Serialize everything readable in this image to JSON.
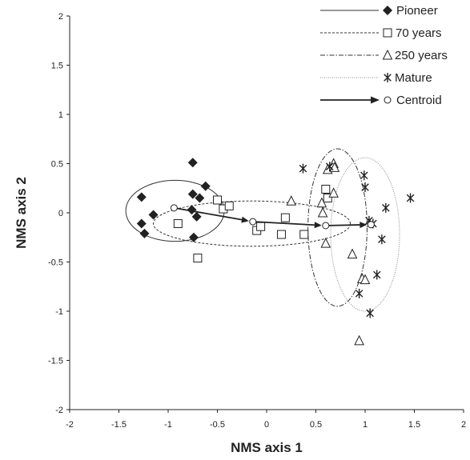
{
  "chart_data": {
    "type": "scatter",
    "title": "",
    "xlabel": "NMS axis 1",
    "ylabel": "NMS axis 2",
    "xlim": [
      -2,
      2
    ],
    "ylim": [
      -2,
      2
    ],
    "xticks": [
      "-2",
      "-1.5",
      "-1",
      "-0.5",
      "0",
      "0.5",
      "1",
      "1.5",
      "2"
    ],
    "yticks": [
      "2",
      "1.5",
      "1",
      "0.5",
      "0",
      "-0.5",
      "-1",
      "-1.5",
      "-2"
    ],
    "grid": false,
    "legend_position": "top-right",
    "series": [
      {
        "name": "Pioneer",
        "marker": "filled-diamond",
        "line_style": "solid",
        "color": "#222222",
        "points": [
          [
            -0.75,
            0.51
          ],
          [
            -0.62,
            0.27
          ],
          [
            -0.75,
            0.19
          ],
          [
            -0.68,
            0.15
          ],
          [
            -1.27,
            0.16
          ],
          [
            -0.76,
            0.03
          ],
          [
            -0.71,
            -0.04
          ],
          [
            -1.27,
            -0.11
          ],
          [
            -1.24,
            -0.21
          ],
          [
            -1.15,
            -0.02
          ],
          [
            -0.74,
            -0.25
          ]
        ],
        "ellipse": {
          "cx": -0.93,
          "cy": 0.02,
          "rx": 0.5,
          "ry": 0.31
        }
      },
      {
        "name": "70 years",
        "marker": "open-square",
        "line_style": "dashed",
        "color": "#222222",
        "points": [
          [
            -0.9,
            -0.11
          ],
          [
            -0.7,
            -0.46
          ],
          [
            -0.5,
            0.13
          ],
          [
            -0.44,
            0.04
          ],
          [
            -0.38,
            0.07
          ],
          [
            -0.1,
            -0.18
          ],
          [
            -0.06,
            -0.14
          ],
          [
            0.19,
            -0.05
          ],
          [
            0.15,
            -0.22
          ],
          [
            0.38,
            -0.22
          ],
          [
            0.6,
            0.24
          ],
          [
            0.62,
            0.15
          ]
        ],
        "ellipse": {
          "cx": -0.15,
          "cy": -0.11,
          "rx": 1.0,
          "ry": 0.23
        }
      },
      {
        "name": "250 years",
        "marker": "open-triangle",
        "line_style": "dash-dot",
        "color": "#222222",
        "points": [
          [
            0.25,
            0.12
          ],
          [
            0.56,
            0.1
          ],
          [
            0.57,
            0.0
          ],
          [
            0.62,
            0.44
          ],
          [
            0.68,
            0.5
          ],
          [
            0.68,
            0.2
          ],
          [
            0.69,
            0.46
          ],
          [
            0.6,
            -0.31
          ],
          [
            0.87,
            -0.42
          ],
          [
            0.97,
            -0.67
          ],
          [
            1.0,
            -0.68
          ],
          [
            0.94,
            -1.3
          ]
        ],
        "ellipse": {
          "cx": 0.72,
          "cy": -0.15,
          "rx": 0.3,
          "ry": 0.8
        }
      },
      {
        "name": "Mature",
        "marker": "asterisk",
        "line_style": "dotted",
        "color": "#222222",
        "points": [
          [
            0.37,
            0.45
          ],
          [
            0.64,
            0.47
          ],
          [
            0.99,
            0.38
          ],
          [
            1.0,
            0.26
          ],
          [
            1.21,
            0.05
          ],
          [
            1.46,
            0.15
          ],
          [
            1.04,
            -0.08
          ],
          [
            1.08,
            -0.11
          ],
          [
            1.17,
            -0.27
          ],
          [
            1.12,
            -0.63
          ],
          [
            0.94,
            -0.82
          ],
          [
            1.05,
            -1.02
          ]
        ],
        "ellipse": {
          "cx": 1.0,
          "cy": -0.22,
          "rx": 0.35,
          "ry": 0.78
        }
      }
    ],
    "centroids": {
      "name": "Centroid",
      "marker": "open-circle",
      "points": [
        [
          -0.94,
          0.05
        ],
        [
          -0.14,
          -0.09
        ],
        [
          0.6,
          -0.13
        ],
        [
          1.06,
          -0.12
        ]
      ]
    }
  }
}
